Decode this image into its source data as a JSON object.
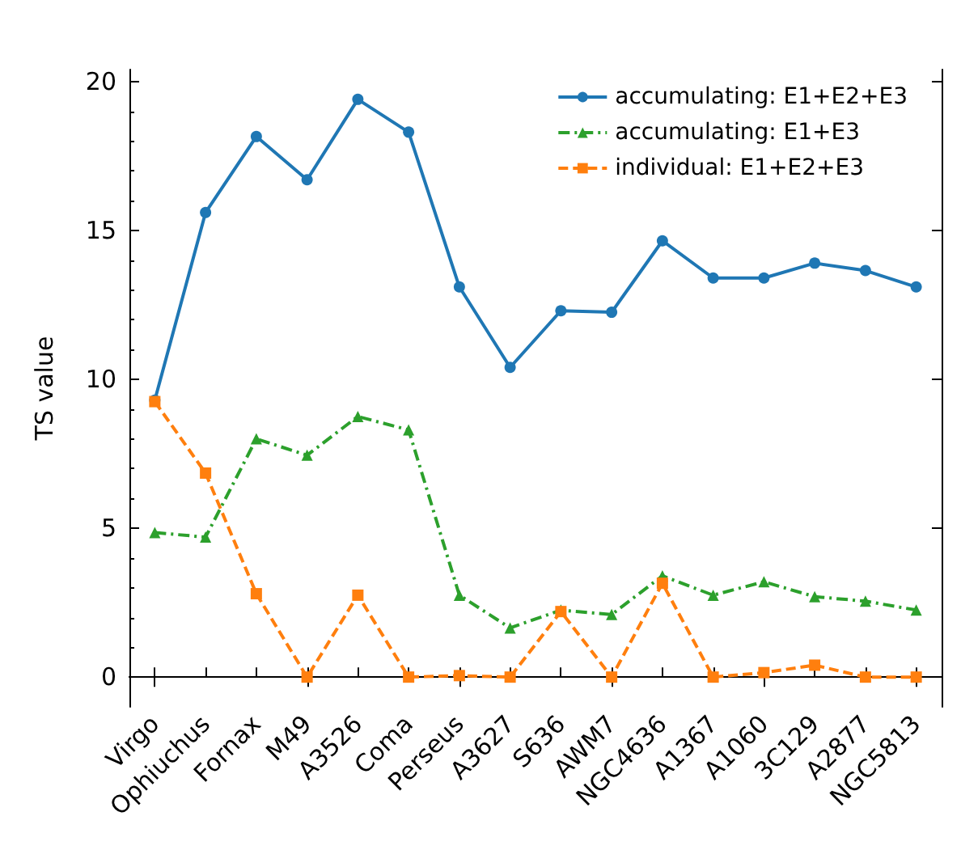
{
  "chart_data": {
    "type": "line",
    "ylabel": "TS value",
    "categories": [
      "Virgo",
      "Ophiuchus",
      "Fornax",
      "M49",
      "A3526",
      "Coma",
      "Perseus",
      "A3627",
      "S636",
      "AWM7",
      "NGC4636",
      "A1367",
      "A1060",
      "3C129",
      "A2877",
      "NGC5813"
    ],
    "series": [
      {
        "name": "accumulating: E1+E2+E3",
        "color": "#1f77b4",
        "marker": "circle",
        "line_style": "solid",
        "values": [
          9.3,
          15.6,
          18.15,
          16.7,
          19.4,
          18.3,
          13.1,
          10.4,
          12.3,
          12.25,
          14.65,
          13.4,
          13.4,
          13.9,
          13.65,
          13.1
        ]
      },
      {
        "name": "accumulating: E1+E3",
        "color": "#2ca02c",
        "marker": "triangle",
        "line_style": "dashdot",
        "values": [
          4.85,
          4.7,
          8.0,
          7.45,
          8.75,
          8.3,
          2.75,
          1.65,
          2.25,
          2.1,
          3.4,
          2.75,
          3.2,
          2.7,
          2.55,
          2.25
        ]
      },
      {
        "name": "individual: E1+E2+E3",
        "color": "#ff7f0e",
        "marker": "square",
        "line_style": "dashed",
        "values": [
          9.25,
          6.85,
          2.8,
          0,
          2.75,
          0,
          0.05,
          0,
          2.2,
          0,
          3.15,
          0,
          0.15,
          0.4,
          0,
          0
        ]
      }
    ],
    "ylim": [
      -1,
      20.4
    ],
    "yticks": [
      0,
      5,
      10,
      15,
      20
    ],
    "grid": false,
    "legend": "top right"
  }
}
